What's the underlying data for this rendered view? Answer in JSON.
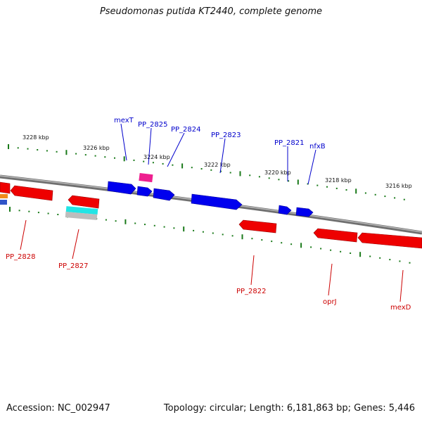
{
  "header": {
    "title": "Pseudomonas putida KT2440, complete genome"
  },
  "footer": {
    "accession": "Accession: NC_002947",
    "summary": "Topology: circular; Length: 6,181,863 bp; Genes: 5,446"
  },
  "colors": {
    "forward_gene": "#0000ee",
    "reverse_gene": "#ee0000",
    "forward_label": "#0000cc",
    "reverse_label": "#cc0000",
    "tick": "#1a7a1a",
    "backbone": "#808080"
  },
  "scale": {
    "marks": [
      "3228 kbp",
      "3226 kbp",
      "3224 kbp",
      "3222 kbp",
      "3220 kbp",
      "3218 kbp",
      "3216 kbp"
    ]
  },
  "labels": {
    "forward": [
      "mexT",
      "PP_2825",
      "PP_2824",
      "PP_2823",
      "PP_2821",
      "nfxB"
    ],
    "reverse": [
      "PP_2828",
      "PP_2827",
      "PP_2822",
      "oprJ",
      "mexD"
    ]
  }
}
